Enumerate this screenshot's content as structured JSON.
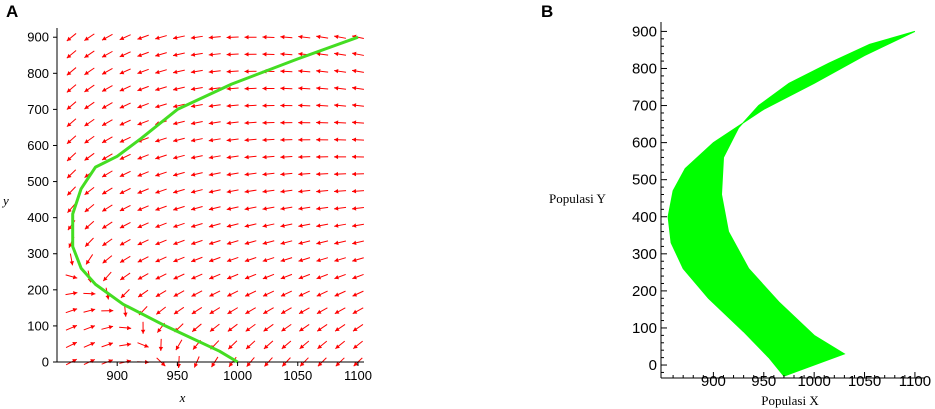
{
  "panels": {
    "a_letter": "A",
    "b_letter": "B"
  },
  "colors": {
    "arrow": "#ff0000",
    "curve": "#44dd22",
    "band": "#00ff00",
    "axis": "#000000"
  },
  "chart_data": [
    {
      "panel": "A",
      "type": "line",
      "subtype": "direction field with trajectory",
      "xlabel": "x",
      "ylabel": "y",
      "xlim": [
        850,
        1105
      ],
      "ylim": [
        0,
        920
      ],
      "xticks": [
        900,
        950,
        1000,
        1050,
        1100
      ],
      "yticks": [
        0,
        100,
        200,
        300,
        400,
        500,
        600,
        700,
        800,
        900
      ],
      "field_color": "#ff0000",
      "trajectory": {
        "color": "#44dd22",
        "x": [
          1100,
          1050,
          995,
          950,
          920,
          900,
          882,
          870,
          863,
          863,
          870,
          882,
          905,
          940,
          985,
          1000
        ],
        "y": [
          900,
          840,
          770,
          700,
          620,
          570,
          540,
          480,
          410,
          320,
          260,
          215,
          160,
          100,
          30,
          0
        ]
      }
    },
    {
      "panel": "B",
      "type": "area",
      "xlabel": "Populasi X",
      "ylabel": "Populasi Y",
      "xlim": [
        848,
        1110
      ],
      "ylim": [
        -35,
        920
      ],
      "xticks": [
        900,
        950,
        1000,
        1050,
        1100
      ],
      "yticks": [
        0,
        100,
        200,
        300,
        400,
        500,
        600,
        700,
        800,
        900
      ],
      "band_color": "#00ff00",
      "outer_edge": {
        "x": [
          1100,
          1050,
          1000,
          950,
          900,
          872,
          860,
          855,
          858,
          870,
          895,
          930,
          955,
          970
        ],
        "y": [
          900,
          835,
          760,
          690,
          600,
          530,
          470,
          400,
          330,
          260,
          180,
          90,
          20,
          -30
        ]
      },
      "inner_edge": {
        "x": [
          1100,
          1055,
          1015,
          975,
          945,
          925,
          910,
          908,
          915,
          935,
          965,
          1000,
          1030
        ],
        "y": [
          900,
          865,
          815,
          760,
          700,
          640,
          560,
          460,
          360,
          260,
          170,
          80,
          30
        ]
      }
    }
  ]
}
